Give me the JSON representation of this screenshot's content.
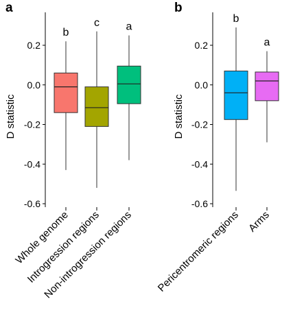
{
  "chart_data": [
    {
      "type": "box",
      "panel": "a",
      "ylabel": "D statistic",
      "ylim": [
        -0.62,
        0.34
      ],
      "yticks": [
        0.2,
        0.0,
        -0.2,
        -0.4,
        -0.6
      ],
      "ytick_labels": [
        "0.2",
        "0.0",
        "-0.2",
        "-0.4",
        "-0.6"
      ],
      "categories": [
        "Whole genome",
        "Introgression regions",
        "Non-introgression regions"
      ],
      "boxes": [
        {
          "category": "Whole genome",
          "min": -0.43,
          "q1": -0.14,
          "median": -0.01,
          "q3": 0.06,
          "max": 0.22,
          "color": "#f8766d",
          "letter": "b"
        },
        {
          "category": "Introgression regions",
          "min": -0.52,
          "q1": -0.21,
          "median": -0.115,
          "q3": -0.01,
          "max": 0.27,
          "color": "#a3a500",
          "letter": "c"
        },
        {
          "category": "Non-introgression regions",
          "min": -0.38,
          "q1": -0.095,
          "median": 0.005,
          "q3": 0.095,
          "max": 0.25,
          "color": "#00bf7d",
          "letter": "a"
        }
      ]
    },
    {
      "type": "box",
      "panel": "b",
      "ylabel": "D statistic",
      "ylim": [
        -0.62,
        0.34
      ],
      "yticks": [
        0.2,
        0.0,
        -0.2,
        -0.4,
        -0.6
      ],
      "ytick_labels": [
        "0.2",
        "0.0",
        "-0.2",
        "-0.4",
        "-0.6"
      ],
      "categories": [
        "Pericentromeric regions",
        "Arms"
      ],
      "boxes": [
        {
          "category": "Pericentromeric regions",
          "min": -0.535,
          "q1": -0.175,
          "median": -0.04,
          "q3": 0.07,
          "max": 0.29,
          "color": "#00b0f6",
          "letter": "b"
        },
        {
          "category": "Arms",
          "min": -0.29,
          "q1": -0.08,
          "median": 0.02,
          "q3": 0.065,
          "max": 0.17,
          "color": "#e76bf3",
          "letter": "a"
        }
      ]
    }
  ]
}
